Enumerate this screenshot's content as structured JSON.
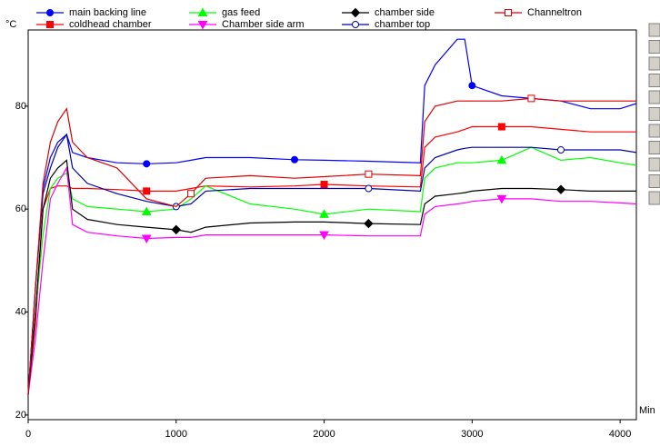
{
  "chart_data": {
    "type": "line",
    "y_label": "°C",
    "x_label": "Min",
    "x": [
      0,
      50,
      100,
      150,
      200,
      260,
      300,
      400,
      600,
      800,
      1000,
      1100,
      1200,
      1500,
      1800,
      2000,
      2300,
      2650,
      2680,
      2750,
      2900,
      2950,
      3000,
      3200,
      3400,
      3600,
      3800,
      4000,
      4110
    ],
    "series": [
      {
        "name": "main backing line",
        "color": "#0000ff",
        "marker": "circle",
        "values": [
          24,
          45,
          64,
          70,
          73,
          74.5,
          71,
          70,
          69,
          68.8,
          69,
          69.5,
          70,
          70,
          69.6,
          69.5,
          69.3,
          69,
          84,
          88,
          93,
          93,
          84,
          82,
          81.5,
          81,
          79.5,
          79.5,
          80.5
        ]
      },
      {
        "name": "coldhead chamber",
        "color": "#ff0000",
        "marker": "square",
        "values": [
          24,
          38,
          60,
          64,
          64.5,
          64.5,
          64,
          64,
          63.8,
          63.5,
          63.5,
          64,
          64.5,
          64.3,
          64.5,
          64.8,
          64.5,
          64.3,
          72,
          74,
          75,
          75.5,
          76,
          76,
          76,
          75.5,
          75,
          75,
          75
        ]
      },
      {
        "name": "gas feed",
        "color": "#00ff00",
        "marker": "triangle-up",
        "values": [
          24,
          40,
          55,
          64,
          66,
          67,
          62,
          60.5,
          60,
          59.5,
          60,
          62,
          64.5,
          61,
          60,
          59,
          60,
          59.5,
          66,
          68,
          69,
          69,
          69,
          69.5,
          72,
          69.5,
          70,
          69,
          68.5
        ]
      },
      {
        "name": "Chamber side arm",
        "color": "#ff00ff",
        "marker": "triangle-down",
        "values": [
          24,
          35,
          50,
          62,
          65,
          68,
          57,
          55.5,
          54.8,
          54.3,
          54.5,
          54.5,
          55,
          55,
          55,
          55,
          54.8,
          54.8,
          59,
          60.5,
          61,
          61.2,
          61.5,
          62,
          62,
          61.5,
          61.5,
          61.2,
          61
        ]
      },
      {
        "name": "chamber side",
        "color": "#000000",
        "marker": "diamond",
        "values": [
          24,
          40,
          60,
          66,
          68,
          69.5,
          60,
          58,
          57,
          56.5,
          56,
          55.5,
          56.5,
          57.3,
          57.5,
          57.5,
          57.2,
          57,
          61,
          62.5,
          63,
          63.2,
          63.5,
          64,
          64,
          63.8,
          63.5,
          63.5,
          63.5
        ]
      },
      {
        "name": "chamber top",
        "color": "#0000aa",
        "marker": "circle-open",
        "values": [
          24,
          45,
          63,
          68,
          72,
          74.5,
          68,
          65,
          63,
          61.5,
          60.5,
          61,
          63.5,
          64,
          64,
          64,
          64,
          63.5,
          68,
          70,
          71.5,
          71.8,
          72,
          72,
          72,
          71.5,
          71.5,
          71.5,
          71
        ]
      },
      {
        "name": "Channeltron",
        "color": "#dd0000",
        "marker": "square-open",
        "values": [
          24,
          45,
          65,
          73,
          77,
          79.5,
          73,
          70,
          68,
          62,
          60.5,
          63,
          66,
          66.5,
          66,
          66.3,
          66.8,
          66.5,
          77,
          80,
          81,
          81,
          81,
          81,
          81.5,
          81,
          81,
          81,
          81
        ]
      }
    ],
    "xlim": [
      0,
      4110
    ],
    "ylim": [
      19.1,
      94.8
    ],
    "xticks": [
      0,
      1000,
      2000,
      3000,
      4000
    ],
    "yticks": [
      20,
      40,
      60,
      80
    ]
  }
}
